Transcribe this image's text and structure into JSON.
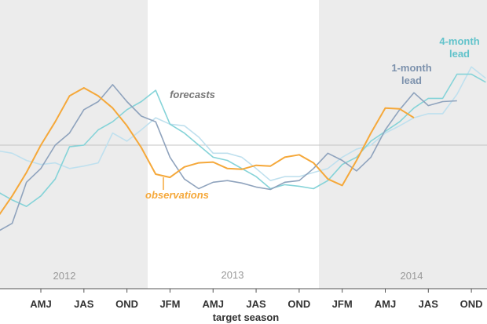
{
  "chart_data": {
    "type": "line",
    "x_label": "target season",
    "years": [
      "2012",
      "2013",
      "2014"
    ],
    "categories": [
      null,
      null,
      null,
      "AMJ",
      null,
      null,
      "JAS",
      null,
      null,
      "OND",
      null,
      null,
      "JFM",
      null,
      null,
      "AMJ",
      null,
      null,
      "JAS",
      null,
      null,
      "OND",
      null,
      null,
      "JFM",
      null,
      null,
      "AMJ",
      null,
      null,
      "JAS",
      null,
      null,
      "OND",
      null
    ],
    "ylim": [
      -1.8,
      1.8
    ],
    "reference_line": 0,
    "forecast_label": "forecasts",
    "series": [
      {
        "color": "#bfe0ee",
        "values": [
          -0.07,
          -0.1,
          -0.19,
          -0.24,
          -0.22,
          -0.29,
          -0.26,
          -0.22,
          0.15,
          0.05,
          0.19,
          0.34,
          0.26,
          0.24,
          0.1,
          -0.1,
          -0.1,
          -0.15,
          -0.29,
          -0.44,
          -0.39,
          -0.39,
          -0.34,
          -0.29,
          -0.15,
          -0.05,
          0,
          0.15,
          0.24,
          0.34,
          0.39,
          0.39,
          0.63,
          0.97,
          0.83
        ]
      },
      {
        "name": "4-month lead",
        "color": "#85d3d8",
        "values": [
          -0.58,
          -0.68,
          -0.76,
          -0.63,
          -0.42,
          -0.02,
          0,
          0.19,
          0.29,
          0.44,
          0.54,
          0.68,
          0.26,
          0.15,
          0,
          -0.15,
          -0.19,
          -0.29,
          -0.39,
          -0.54,
          -0.49,
          -0.51,
          -0.54,
          -0.44,
          -0.24,
          -0.15,
          0.05,
          0.17,
          0.29,
          0.46,
          0.58,
          0.58,
          0.88,
          0.88,
          0.78
        ]
      },
      {
        "name": "1-month lead",
        "color": "#8fa3bd",
        "values": [
          -1.07,
          -0.97,
          -0.46,
          -0.29,
          0,
          0.15,
          0.44,
          0.54,
          0.75,
          0.54,
          0.36,
          0.29,
          -0.15,
          -0.42,
          -0.54,
          -0.46,
          -0.44,
          -0.47,
          -0.52,
          -0.55,
          -0.46,
          -0.44,
          -0.29,
          -0.1,
          -0.19,
          -0.32,
          -0.15,
          0.19,
          0.44,
          0.65,
          0.49,
          0.54,
          0.55,
          null,
          null
        ]
      },
      {
        "name": "observations",
        "color": "#f5a83a",
        "values": [
          -0.89,
          -0.63,
          -0.34,
          0,
          0.29,
          0.61,
          0.71,
          0.61,
          0.46,
          0.24,
          -0.03,
          -0.36,
          -0.4,
          -0.27,
          -0.22,
          -0.21,
          -0.29,
          -0.3,
          -0.25,
          -0.26,
          -0.15,
          -0.12,
          -0.22,
          -0.42,
          -0.5,
          -0.19,
          0.15,
          0.46,
          0.45,
          0.34,
          null,
          null,
          null,
          null,
          null
        ]
      }
    ]
  }
}
